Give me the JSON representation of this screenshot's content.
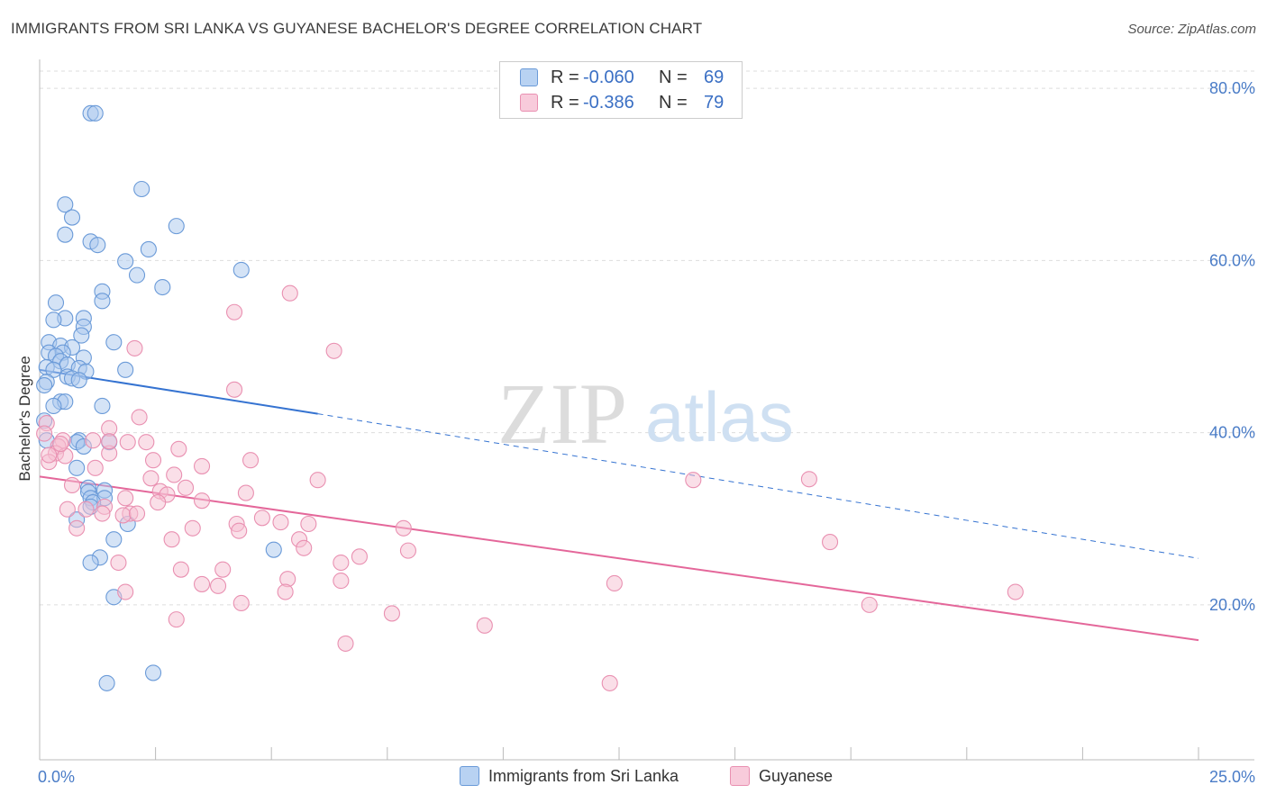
{
  "title": "IMMIGRANTS FROM SRI LANKA VS GUYANESE BACHELOR'S DEGREE CORRELATION CHART",
  "source": "Source: ZipAtlas.com",
  "watermark": {
    "zip": "ZIP",
    "atlas": "atlas"
  },
  "legend_top": [
    {
      "r_label": "R =",
      "r_value": "-0.060",
      "n_label": "N =",
      "n_value": "69"
    },
    {
      "r_label": "R =",
      "r_value": "-0.386",
      "n_label": "N =",
      "n_value": "79"
    }
  ],
  "legend_bottom": [
    "Immigrants from Sri Lanka",
    "Guyanese"
  ],
  "colors": {
    "blue_fill": "#a9c8ee",
    "blue_stroke": "#6a9ad8",
    "blue_line": "#3573d1",
    "pink_fill": "#f6bfd2",
    "pink_stroke": "#e990b1",
    "pink_line": "#e4679a",
    "grid": "#dddddd",
    "tick_text": "#4a7cc7"
  },
  "chart_data": {
    "type": "scatter",
    "title": "IMMIGRANTS FROM SRI LANKA VS GUYANESE BACHELOR'S DEGREE CORRELATION CHART",
    "xlabel": "",
    "ylabel": "Bachelor's Degree",
    "xlim": [
      0,
      25
    ],
    "ylim": [
      2,
      82
    ],
    "x_tick_labels": [
      {
        "value": 0,
        "label": "0.0%"
      },
      {
        "value": 25,
        "label": "25.0%"
      }
    ],
    "y_ticks": [
      {
        "value": 20,
        "label": "20.0%"
      },
      {
        "value": 40,
        "label": "40.0%"
      },
      {
        "value": 60,
        "label": "60.0%"
      },
      {
        "value": 80,
        "label": "80.0%"
      }
    ],
    "series": [
      {
        "name": "Immigrants from Sri Lanka",
        "R": -0.06,
        "N": 69,
        "trend": {
          "x0": 0,
          "y0": 47.3,
          "x1": 6.0,
          "y1": 42.2,
          "dash_to_x": 25,
          "dash_to_y": 25.4
        },
        "points": [
          [
            1.1,
            77.1
          ],
          [
            1.2,
            77.1
          ],
          [
            2.2,
            68.3
          ],
          [
            0.55,
            66.5
          ],
          [
            0.7,
            65.0
          ],
          [
            2.95,
            64.0
          ],
          [
            0.55,
            63.0
          ],
          [
            1.1,
            62.2
          ],
          [
            1.25,
            61.8
          ],
          [
            2.35,
            61.3
          ],
          [
            1.85,
            59.9
          ],
          [
            4.35,
            58.9
          ],
          [
            2.1,
            58.3
          ],
          [
            2.65,
            56.9
          ],
          [
            1.35,
            56.4
          ],
          [
            1.35,
            55.3
          ],
          [
            0.35,
            55.1
          ],
          [
            0.55,
            53.3
          ],
          [
            0.3,
            53.1
          ],
          [
            0.95,
            53.3
          ],
          [
            0.95,
            52.3
          ],
          [
            0.9,
            51.3
          ],
          [
            1.6,
            50.5
          ],
          [
            0.2,
            50.5
          ],
          [
            0.45,
            50.1
          ],
          [
            0.7,
            49.9
          ],
          [
            0.2,
            49.3
          ],
          [
            0.5,
            49.3
          ],
          [
            0.35,
            48.9
          ],
          [
            0.95,
            48.7
          ],
          [
            0.45,
            48.3
          ],
          [
            0.6,
            47.9
          ],
          [
            0.15,
            47.6
          ],
          [
            0.85,
            47.5
          ],
          [
            1.85,
            47.3
          ],
          [
            0.3,
            47.3
          ],
          [
            1.0,
            47.1
          ],
          [
            0.6,
            46.5
          ],
          [
            0.7,
            46.3
          ],
          [
            0.85,
            46.1
          ],
          [
            0.15,
            45.9
          ],
          [
            0.1,
            45.5
          ],
          [
            0.45,
            43.6
          ],
          [
            0.55,
            43.6
          ],
          [
            0.3,
            43.1
          ],
          [
            1.35,
            43.1
          ],
          [
            0.1,
            41.4
          ],
          [
            0.85,
            39.1
          ],
          [
            0.8,
            38.9
          ],
          [
            1.5,
            38.9
          ],
          [
            0.95,
            38.4
          ],
          [
            0.8,
            35.9
          ],
          [
            1.05,
            33.6
          ],
          [
            1.4,
            33.3
          ],
          [
            1.05,
            33.1
          ],
          [
            1.1,
            32.4
          ],
          [
            1.4,
            32.4
          ],
          [
            1.15,
            31.9
          ],
          [
            1.1,
            31.4
          ],
          [
            0.8,
            29.9
          ],
          [
            1.9,
            29.4
          ],
          [
            1.6,
            27.6
          ],
          [
            5.05,
            26.4
          ],
          [
            1.3,
            25.5
          ],
          [
            1.1,
            24.9
          ],
          [
            1.6,
            20.9
          ],
          [
            2.45,
            12.1
          ],
          [
            1.45,
            10.9
          ],
          [
            0.15,
            39.1
          ]
        ]
      },
      {
        "name": "Guyanese",
        "R": -0.386,
        "N": 79,
        "trend": {
          "x0": 0,
          "y0": 34.9,
          "x1": 25,
          "y1": 15.9
        },
        "points": [
          [
            5.4,
            56.2
          ],
          [
            4.2,
            54.0
          ],
          [
            2.05,
            49.8
          ],
          [
            6.35,
            49.5
          ],
          [
            4.2,
            45.0
          ],
          [
            0.15,
            41.1
          ],
          [
            2.15,
            41.8
          ],
          [
            1.5,
            40.5
          ],
          [
            0.1,
            39.9
          ],
          [
            0.5,
            39.1
          ],
          [
            1.15,
            39.1
          ],
          [
            2.3,
            38.9
          ],
          [
            0.4,
            38.4
          ],
          [
            1.9,
            38.9
          ],
          [
            1.5,
            37.6
          ],
          [
            0.35,
            37.6
          ],
          [
            0.55,
            37.3
          ],
          [
            3.0,
            38.1
          ],
          [
            0.2,
            36.6
          ],
          [
            2.45,
            36.8
          ],
          [
            4.55,
            36.8
          ],
          [
            3.5,
            36.1
          ],
          [
            1.2,
            35.9
          ],
          [
            2.9,
            35.1
          ],
          [
            2.4,
            34.7
          ],
          [
            6.0,
            34.5
          ],
          [
            14.1,
            34.5
          ],
          [
            16.6,
            34.6
          ],
          [
            3.15,
            33.6
          ],
          [
            0.7,
            33.9
          ],
          [
            2.6,
            33.2
          ],
          [
            4.45,
            33.0
          ],
          [
            2.75,
            32.8
          ],
          [
            1.85,
            32.4
          ],
          [
            0.6,
            31.1
          ],
          [
            3.5,
            32.1
          ],
          [
            2.55,
            31.9
          ],
          [
            1.0,
            31.1
          ],
          [
            1.4,
            31.4
          ],
          [
            1.35,
            30.6
          ],
          [
            1.95,
            30.6
          ],
          [
            4.8,
            30.1
          ],
          [
            1.8,
            30.4
          ],
          [
            4.25,
            29.4
          ],
          [
            5.2,
            29.6
          ],
          [
            5.8,
            29.4
          ],
          [
            0.8,
            28.9
          ],
          [
            3.3,
            28.9
          ],
          [
            4.3,
            28.6
          ],
          [
            7.85,
            28.9
          ],
          [
            5.6,
            27.6
          ],
          [
            2.85,
            27.6
          ],
          [
            17.05,
            27.3
          ],
          [
            5.7,
            26.6
          ],
          [
            7.95,
            26.3
          ],
          [
            6.9,
            25.6
          ],
          [
            6.5,
            24.9
          ],
          [
            1.7,
            24.9
          ],
          [
            3.05,
            24.1
          ],
          [
            3.95,
            24.1
          ],
          [
            5.35,
            23.0
          ],
          [
            6.5,
            22.8
          ],
          [
            3.5,
            22.4
          ],
          [
            12.4,
            22.5
          ],
          [
            3.85,
            22.2
          ],
          [
            5.3,
            21.5
          ],
          [
            1.85,
            21.5
          ],
          [
            21.05,
            21.5
          ],
          [
            17.9,
            20.0
          ],
          [
            4.35,
            20.2
          ],
          [
            2.95,
            18.3
          ],
          [
            7.6,
            19.0
          ],
          [
            9.6,
            17.6
          ],
          [
            6.6,
            15.5
          ],
          [
            12.3,
            10.9
          ],
          [
            0.45,
            38.7
          ],
          [
            1.5,
            39.0
          ],
          [
            0.2,
            37.4
          ],
          [
            2.1,
            30.6
          ]
        ]
      }
    ]
  }
}
